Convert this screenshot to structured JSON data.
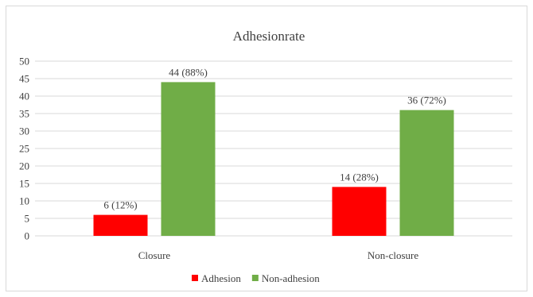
{
  "chart_data": {
    "type": "bar",
    "title": "Adhesionrate",
    "xlabel": "",
    "ylabel": "",
    "categories": [
      "Closure",
      "Non-closure"
    ],
    "series": [
      {
        "name": "Adhesion",
        "color": "#ff0000",
        "values": [
          6,
          14
        ],
        "labels": [
          "6 (12%)",
          "14 (28%)"
        ]
      },
      {
        "name": "Non-adhesion",
        "color": "#70ad47",
        "values": [
          44,
          36
        ],
        "labels": [
          "44 (88%)",
          "36 (72%)"
        ]
      }
    ],
    "ylim": [
      0,
      50
    ],
    "yticks": [
      0,
      5,
      10,
      15,
      20,
      25,
      30,
      35,
      40,
      45,
      50
    ],
    "grid": true,
    "legend_position": "bottom"
  }
}
